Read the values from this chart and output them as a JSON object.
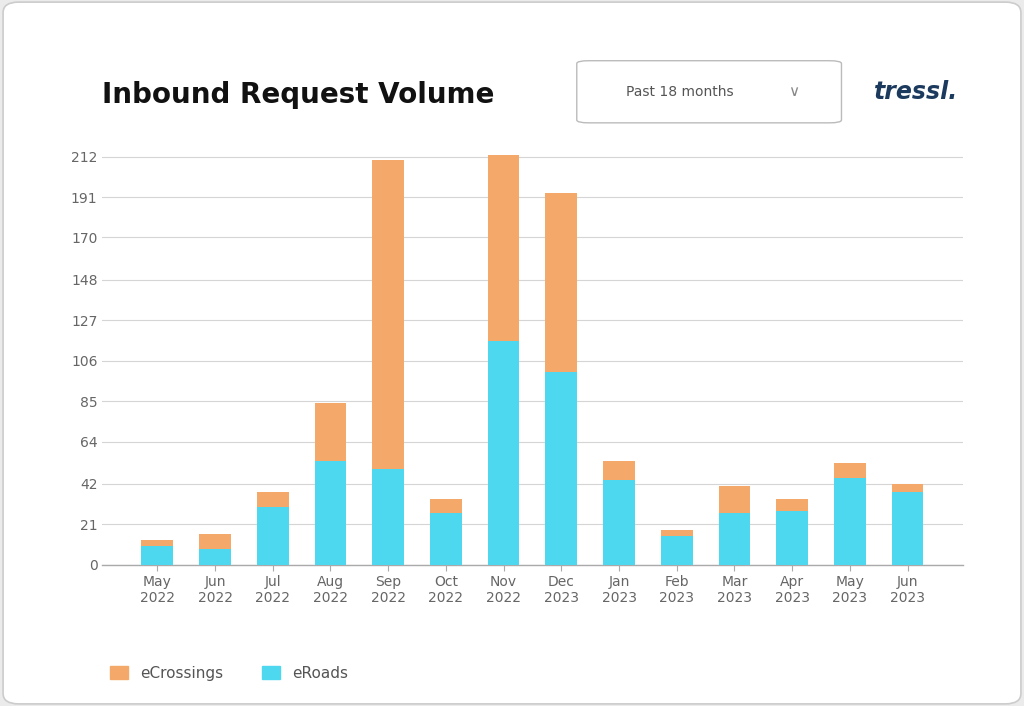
{
  "categories": [
    "May\n2022",
    "Jun\n2022",
    "Jul\n2022",
    "Aug\n2022",
    "Sep\n2022",
    "Oct\n2022",
    "Nov\n2022",
    "Dec\n2023",
    "Jan\n2023",
    "Feb\n2023",
    "Mar\n2023",
    "Apr\n2023",
    "May\n2023",
    "Jun\n2023"
  ],
  "eroads": [
    10,
    8,
    30,
    54,
    50,
    27,
    116,
    100,
    44,
    15,
    27,
    28,
    45,
    38
  ],
  "ecrossings": [
    3,
    8,
    8,
    30,
    160,
    7,
    97,
    93,
    10,
    3,
    14,
    6,
    8,
    4
  ],
  "eroads_color": "#4DD8F0",
  "ecrossings_color": "#F4A96A",
  "title": "Inbound Request Volume",
  "yticks": [
    0,
    21,
    42,
    64,
    85,
    106,
    127,
    148,
    170,
    191,
    212
  ],
  "ylim": [
    0,
    220
  ],
  "background_color": "#ffffff",
  "grid_color": "#d5d5d5",
  "legend_ecrossings": "eCrossings",
  "legend_eroads": "eRoads",
  "dropdown_text": "Past 18 months",
  "brand_text": "tressl.",
  "title_fontsize": 20,
  "axis_fontsize": 10,
  "legend_fontsize": 11,
  "outer_bg": "#ebebeb"
}
